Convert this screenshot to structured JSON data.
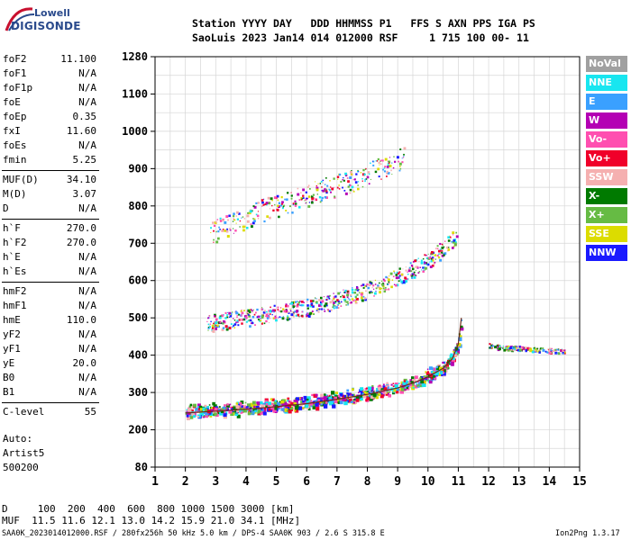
{
  "logo": {
    "top": "Lowell",
    "bottom": "DIGISONDE"
  },
  "header": {
    "line1": "Station YYYY DAY   DDD HHMMSS P1   FFS S AXN PPS IGA PS",
    "line2": "SaoLuis 2023 Jan14 014 012000 RSF     1 715 100 00- 11"
  },
  "params": {
    "group1": [
      {
        "k": "foF2",
        "v": "11.100"
      },
      {
        "k": "foF1",
        "v": "N/A"
      },
      {
        "k": "foF1p",
        "v": "N/A"
      },
      {
        "k": "foE",
        "v": "N/A"
      },
      {
        "k": "foEp",
        "v": "0.35"
      },
      {
        "k": "fxI",
        "v": "11.60"
      },
      {
        "k": "foEs",
        "v": "N/A"
      },
      {
        "k": "fmin",
        "v": "5.25"
      }
    ],
    "group2": [
      {
        "k": "MUF(D)",
        "v": "34.10"
      },
      {
        "k": "M(D)",
        "v": "3.07"
      },
      {
        "k": "D",
        "v": "N/A"
      }
    ],
    "group3": [
      {
        "k": "h`F",
        "v": "270.0"
      },
      {
        "k": "h`F2",
        "v": "270.0"
      },
      {
        "k": "h`E",
        "v": "N/A"
      },
      {
        "k": "h`Es",
        "v": "N/A"
      }
    ],
    "group4": [
      {
        "k": "hmF2",
        "v": "N/A"
      },
      {
        "k": "hmF1",
        "v": "N/A"
      },
      {
        "k": "hmE",
        "v": "110.0"
      },
      {
        "k": "yF2",
        "v": "N/A"
      },
      {
        "k": "yF1",
        "v": "N/A"
      },
      {
        "k": "yE",
        "v": "20.0"
      },
      {
        "k": "B0",
        "v": "N/A"
      },
      {
        "k": "B1",
        "v": "N/A"
      }
    ],
    "group5": [
      {
        "k": "C-level",
        "v": "55"
      }
    ]
  },
  "auto": {
    "l1": "Auto:",
    "l2": "Artist5",
    "l3": "500200"
  },
  "legend": [
    {
      "label": "NoVal",
      "color": "#a0a0a0"
    },
    {
      "label": "NNE",
      "color": "#18e6f0"
    },
    {
      "label": "E",
      "color": "#3aa0ff"
    },
    {
      "label": "W",
      "color": "#b400b4"
    },
    {
      "label": "Vo-",
      "color": "#ff4fb0"
    },
    {
      "label": "Vo+",
      "color": "#f0002a"
    },
    {
      "label": "SSW",
      "color": "#f5b0b0"
    },
    {
      "label": "X-",
      "color": "#007a00"
    },
    {
      "label": "X+",
      "color": "#66bb44"
    },
    {
      "label": "SSE",
      "color": "#dcdc00"
    },
    {
      "label": "NNW",
      "color": "#1a1aff"
    }
  ],
  "footer": {
    "row1": "D     100  200  400  600  800 1000 1500 3000 [km]",
    "row2": "MUF  11.5 11.6 12.1 13.0 14.2 15.9 21.0 34.1 [MHz]",
    "row3": "SAA0K_2023014012000.RSF / 280fx256h 50 kHz 5.0 km / DPS-4 SAA0K 903 / 2.6 S 315.8 E",
    "version": "Ion2Png 1.3.17"
  },
  "chart_data": {
    "type": "scatter",
    "xlim": [
      1,
      15
    ],
    "ylim": [
      80,
      1280
    ],
    "x_ticks": [
      "1",
      "2",
      "3",
      "4",
      "5",
      "6",
      "7",
      "8",
      "9",
      "10",
      "11",
      "12",
      "13",
      "14",
      "15"
    ],
    "y_ticks": [
      "80",
      "200",
      "300",
      "400",
      "500",
      "600",
      "700",
      "800",
      "900",
      "1000",
      "1100",
      "1280"
    ],
    "grid": true,
    "legend_position": "right",
    "traces": [
      {
        "name": "o-trace",
        "x": [
          2.0,
          3.0,
          4.0,
          5.0,
          6.0,
          7.0,
          8.0,
          9.0,
          9.5,
          10.0,
          10.5,
          10.8,
          11.0,
          11.1
        ],
        "y": [
          245,
          250,
          255,
          262,
          270,
          282,
          295,
          312,
          325,
          342,
          365,
          390,
          430,
          500
        ]
      },
      {
        "name": "second-hop",
        "x": [
          2.7,
          3.5,
          4.5,
          5.5,
          6.5,
          7.5,
          8.5,
          9.5,
          10.0,
          10.5,
          11.0
        ],
        "y": [
          480,
          490,
          500,
          515,
          530,
          555,
          585,
          625,
          650,
          680,
          720
        ]
      },
      {
        "name": "third-hop",
        "x": [
          2.8,
          3.5,
          4.5,
          5.5,
          6.5,
          7.5,
          8.5,
          9.2
        ],
        "y": [
          720,
          745,
          780,
          805,
          835,
          860,
          895,
          920
        ]
      },
      {
        "name": "spread-F",
        "x": [
          12.0,
          12.5,
          13.0,
          13.5,
          14.0,
          14.5
        ],
        "y": [
          425,
          420,
          418,
          415,
          412,
          410
        ]
      }
    ]
  }
}
